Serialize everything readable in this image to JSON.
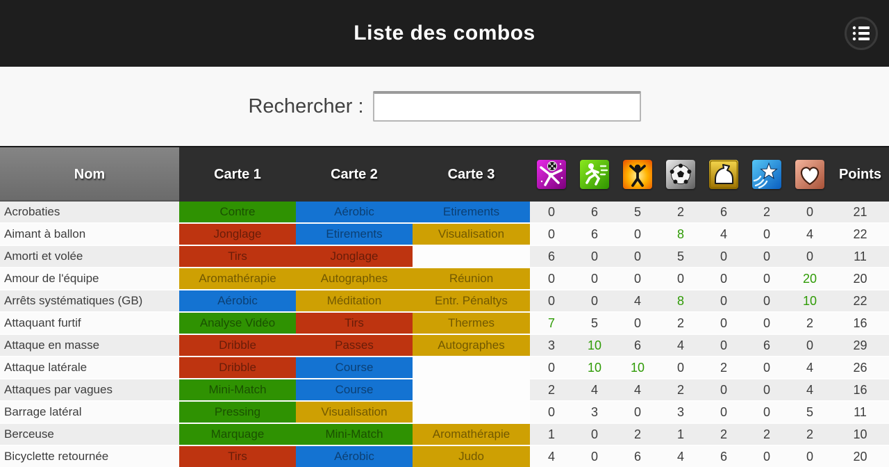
{
  "app": {
    "title": "Liste des combos"
  },
  "topbar": {
    "menu_icon": "list-menu"
  },
  "search": {
    "label": "Rechercher :",
    "value": "",
    "placeholder": ""
  },
  "colors": {
    "card_green": "#2f9202",
    "card_blue": "#1473d2",
    "card_red": "#be3410",
    "card_gold": "#cea003",
    "stat_highlight": "#2f9b06",
    "topbar_bg": "#1e1e1e",
    "table_header_bg": "#2e2e2e"
  },
  "table": {
    "header": {
      "name": "Nom",
      "card1": "Carte 1",
      "card2": "Carte 2",
      "card3": "Carte 3",
      "points": "Points"
    },
    "stat_columns": [
      {
        "icon": "kick"
      },
      {
        "icon": "run"
      },
      {
        "icon": "power"
      },
      {
        "icon": "ball"
      },
      {
        "icon": "strength"
      },
      {
        "icon": "agility"
      },
      {
        "icon": "heart"
      }
    ],
    "rows": [
      {
        "name": "Acrobaties",
        "cards": [
          {
            "label": "Contre",
            "color": "green"
          },
          {
            "label": "Aérobic",
            "color": "blue"
          },
          {
            "label": "Etirements",
            "color": "blue"
          }
        ],
        "stats": [
          0,
          6,
          5,
          2,
          6,
          2,
          0
        ],
        "green_stats": [],
        "points": 21
      },
      {
        "name": "Aimant à ballon",
        "cards": [
          {
            "label": "Jonglage",
            "color": "red"
          },
          {
            "label": "Etirements",
            "color": "blue"
          },
          {
            "label": "Visualisation",
            "color": "gold"
          }
        ],
        "stats": [
          0,
          6,
          0,
          8,
          4,
          0,
          4
        ],
        "green_stats": [
          3
        ],
        "points": 22
      },
      {
        "name": "Amorti et volée",
        "cards": [
          {
            "label": "Tirs",
            "color": "red"
          },
          {
            "label": "Jonglage",
            "color": "red"
          },
          null
        ],
        "stats": [
          6,
          0,
          0,
          5,
          0,
          0,
          0
        ],
        "green_stats": [],
        "points": 11
      },
      {
        "name": "Amour de l'équipe",
        "cards": [
          {
            "label": "Aromathérapie",
            "color": "gold"
          },
          {
            "label": "Autographes",
            "color": "gold"
          },
          {
            "label": "Réunion",
            "color": "gold"
          }
        ],
        "stats": [
          0,
          0,
          0,
          0,
          0,
          0,
          20
        ],
        "green_stats": [
          6
        ],
        "points": 20
      },
      {
        "name": "Arrêts systématiques (GB)",
        "cards": [
          {
            "label": "Aérobic",
            "color": "blue"
          },
          {
            "label": "Méditation",
            "color": "gold"
          },
          {
            "label": "Entr. Pénaltys",
            "color": "gold"
          }
        ],
        "stats": [
          0,
          0,
          4,
          8,
          0,
          0,
          10
        ],
        "green_stats": [
          3,
          6
        ],
        "points": 22
      },
      {
        "name": "Attaquant furtif",
        "cards": [
          {
            "label": "Analyse Vidéo",
            "color": "green"
          },
          {
            "label": "Tirs",
            "color": "red"
          },
          {
            "label": "Thermes",
            "color": "gold"
          }
        ],
        "stats": [
          7,
          5,
          0,
          2,
          0,
          0,
          2
        ],
        "green_stats": [
          0
        ],
        "points": 16
      },
      {
        "name": "Attaque en masse",
        "cards": [
          {
            "label": "Dribble",
            "color": "red"
          },
          {
            "label": "Passes",
            "color": "red"
          },
          {
            "label": "Autographes",
            "color": "gold"
          }
        ],
        "stats": [
          3,
          10,
          6,
          4,
          0,
          6,
          0
        ],
        "green_stats": [
          1
        ],
        "points": 29
      },
      {
        "name": "Attaque latérale",
        "cards": [
          {
            "label": "Dribble",
            "color": "red"
          },
          {
            "label": "Course",
            "color": "blue"
          },
          null
        ],
        "stats": [
          0,
          10,
          10,
          0,
          2,
          0,
          4
        ],
        "green_stats": [
          1,
          2
        ],
        "points": 26
      },
      {
        "name": "Attaques par vagues",
        "cards": [
          {
            "label": "Mini-Match",
            "color": "green"
          },
          {
            "label": "Course",
            "color": "blue"
          },
          null
        ],
        "stats": [
          2,
          4,
          4,
          2,
          0,
          0,
          4
        ],
        "green_stats": [],
        "points": 16
      },
      {
        "name": "Barrage latéral",
        "cards": [
          {
            "label": "Pressing",
            "color": "green"
          },
          {
            "label": "Visualisation",
            "color": "gold"
          },
          null
        ],
        "stats": [
          0,
          3,
          0,
          3,
          0,
          0,
          5
        ],
        "green_stats": [],
        "points": 11
      },
      {
        "name": "Berceuse",
        "cards": [
          {
            "label": "Marquage",
            "color": "green"
          },
          {
            "label": "Mini-Match",
            "color": "green"
          },
          {
            "label": "Aromathérapie",
            "color": "gold"
          }
        ],
        "stats": [
          1,
          0,
          2,
          1,
          2,
          2,
          2
        ],
        "green_stats": [],
        "points": 10
      },
      {
        "name": "Bicyclette retournée",
        "cards": [
          {
            "label": "Tirs",
            "color": "red"
          },
          {
            "label": "Aérobic",
            "color": "blue"
          },
          {
            "label": "Judo",
            "color": "gold"
          }
        ],
        "stats": [
          4,
          0,
          6,
          4,
          6,
          0,
          0
        ],
        "green_stats": [],
        "points": 20
      }
    ]
  }
}
